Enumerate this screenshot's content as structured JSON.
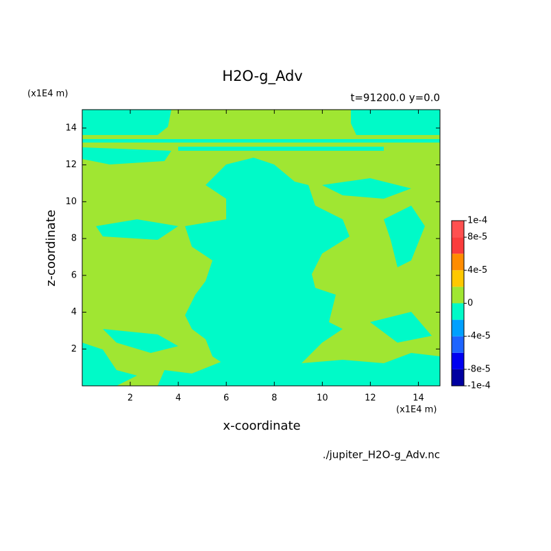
{
  "chart_data": {
    "type": "contour",
    "title": "H2O-g_Adv",
    "subtitle": "t=91200.0 y=0.0",
    "x_label": "x-coordinate",
    "y_label": "z-coordinate",
    "x_unit": "(x1E4 m)",
    "y_unit": "(x1E4 m)",
    "source": "./jupiter_H2O-g_Adv.nc",
    "xlim": [
      0,
      14.9
    ],
    "ylim": [
      0,
      15
    ],
    "xticks": [
      2,
      4,
      6,
      8,
      10,
      12,
      14
    ],
    "yticks": [
      2,
      4,
      6,
      8,
      10,
      12,
      14
    ],
    "levels": [
      -0.0001,
      -8e-05,
      -6e-05,
      -4e-05,
      -2e-05,
      0,
      2e-05,
      4e-05,
      6e-05,
      8e-05,
      0.0001
    ],
    "colors": [
      "#0000a0",
      "#0000f0",
      "#1e64ff",
      "#00a0ff",
      "#00fac8",
      "#a0e632",
      "#ffc800",
      "#ff8c00",
      "#fa3c3c",
      "#ff5050"
    ],
    "colorbar_ticks": [
      {
        "value": 0.0001,
        "label": "1e-4"
      },
      {
        "value": 8e-05,
        "label": "8e-5"
      },
      {
        "value": 4e-05,
        "label": "4e-5"
      },
      0,
      {
        "value": -4e-05,
        "label": "-4e-5"
      },
      {
        "value": -8e-05,
        "label": "-8e-5"
      },
      {
        "value": -0.0001,
        "label": "-1e-4"
      }
    ]
  }
}
